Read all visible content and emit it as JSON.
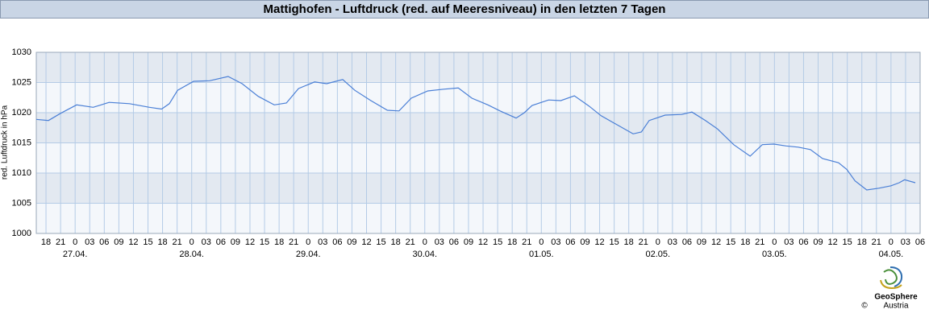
{
  "chart_data": {
    "type": "line",
    "title": "Mattighofen - Luftdruck (red. auf Meeresniveau) in den letzten 7 Tagen",
    "y_label": "red. Luftdruck in hPa",
    "copyright": "©",
    "logo_text": "GeoSphere",
    "logo_subtext": "Austria",
    "xlim": [
      -8,
      174
    ],
    "xticks": [
      {
        "value": -6,
        "label": "18"
      },
      {
        "value": -3,
        "label": "21"
      },
      0,
      {
        "value": 3,
        "label": "03"
      },
      {
        "value": 6,
        "label": "06"
      },
      {
        "value": 9,
        "label": "09"
      },
      12,
      15,
      18,
      21,
      {
        "value": 24,
        "label": "0"
      },
      {
        "value": 27,
        "label": "03"
      },
      {
        "value": 30,
        "label": "06"
      },
      {
        "value": 33,
        "label": "09"
      },
      {
        "value": 36,
        "label": "12"
      },
      {
        "value": 39,
        "label": "15"
      },
      {
        "value": 42,
        "label": "18"
      },
      {
        "value": 45,
        "label": "21"
      },
      {
        "value": 48,
        "label": "0"
      },
      {
        "value": 51,
        "label": "03"
      },
      {
        "value": 54,
        "label": "06"
      },
      {
        "value": 57,
        "label": "09"
      },
      {
        "value": 60,
        "label": "12"
      },
      {
        "value": 63,
        "label": "15"
      },
      {
        "value": 66,
        "label": "18"
      },
      {
        "value": 69,
        "label": "21"
      },
      {
        "value": 72,
        "label": "0"
      },
      {
        "value": 75,
        "label": "03"
      },
      {
        "value": 78,
        "label": "06"
      },
      {
        "value": 81,
        "label": "09"
      },
      {
        "value": 84,
        "label": "12"
      },
      {
        "value": 87,
        "label": "15"
      },
      {
        "value": 90,
        "label": "18"
      },
      {
        "value": 93,
        "label": "21"
      },
      {
        "value": 96,
        "label": "0"
      },
      {
        "value": 99,
        "label": "03"
      },
      {
        "value": 102,
        "label": "06"
      },
      {
        "value": 105,
        "label": "09"
      },
      {
        "value": 108,
        "label": "12"
      },
      {
        "value": 111,
        "label": "15"
      },
      {
        "value": 114,
        "label": "18"
      },
      {
        "value": 117,
        "label": "21"
      },
      {
        "value": 120,
        "label": "0"
      },
      {
        "value": 123,
        "label": "03"
      },
      {
        "value": 126,
        "label": "06"
      },
      {
        "value": 129,
        "label": "09"
      },
      {
        "value": 132,
        "label": "12"
      },
      {
        "value": 135,
        "label": "15"
      },
      {
        "value": 138,
        "label": "18"
      },
      {
        "value": 141,
        "label": "21"
      },
      {
        "value": 144,
        "label": "0"
      },
      {
        "value": 147,
        "label": "03"
      },
      {
        "value": 150,
        "label": "06"
      },
      {
        "value": 153,
        "label": "09"
      },
      {
        "value": 156,
        "label": "12"
      },
      {
        "value": 159,
        "label": "15"
      },
      {
        "value": 162,
        "label": "18"
      },
      {
        "value": 165,
        "label": "21"
      },
      {
        "value": 168,
        "label": "0"
      },
      {
        "value": 171,
        "label": "03"
      },
      {
        "value": 174,
        "label": "06"
      }
    ],
    "date_labels": [
      {
        "value": 0,
        "label": "27.04."
      },
      {
        "value": 24,
        "label": "28.04."
      },
      {
        "value": 48,
        "label": "29.04."
      },
      {
        "value": 72,
        "label": "30.04."
      },
      {
        "value": 96,
        "label": "01.05."
      },
      {
        "value": 120,
        "label": "02.05."
      },
      {
        "value": 144,
        "label": "03.05."
      },
      {
        "value": 168,
        "label": "04.05."
      }
    ],
    "ylim": [
      1000,
      1030
    ],
    "yticks": [
      1000,
      1005,
      1010,
      1015,
      1020,
      1025,
      1030
    ],
    "grid": true,
    "band_colors": [
      "#e3e9f1",
      "#f4f7fb"
    ],
    "x": [
      -8,
      -5.5,
      -3,
      0.3,
      3.7,
      7,
      11.2,
      15.3,
      17.8,
      19.4,
      21.1,
      24.4,
      27.7,
      31.5,
      34.4,
      37.7,
      41,
      43.5,
      46,
      49.3,
      51.8,
      55.1,
      57.6,
      60.9,
      64.3,
      66.7,
      69.2,
      72.6,
      75.9,
      78.9,
      81.7,
      85,
      87.5,
      90.8,
      92.5,
      94.1,
      97.5,
      100,
      102.8,
      105.8,
      108.3,
      111.6,
      114.9,
      116.6,
      118.2,
      121.5,
      124.9,
      127,
      129.8,
      132.3,
      135.6,
      139,
      141.5,
      143.9,
      146.4,
      148.9,
      151.4,
      153.9,
      157.2,
      158.9,
      160.6,
      163,
      165.5,
      168,
      169.7,
      170.8,
      173
    ],
    "series": [
      {
        "color": "#4a7fd6",
        "values": [
          1018.9,
          1018.7,
          1019.9,
          1021.3,
          1020.9,
          1021.7,
          1021.5,
          1020.9,
          1020.6,
          1021.5,
          1023.7,
          1025.2,
          1025.3,
          1026.0,
          1024.8,
          1022.7,
          1021.3,
          1021.6,
          1024.0,
          1025.1,
          1024.8,
          1025.5,
          1023.7,
          1022.0,
          1020.4,
          1020.3,
          1022.4,
          1023.6,
          1023.9,
          1024.1,
          1022.4,
          1021.3,
          1020.3,
          1019.1,
          1020.0,
          1021.2,
          1022.1,
          1022.0,
          1022.8,
          1021.1,
          1019.5,
          1018.0,
          1016.5,
          1016.8,
          1018.7,
          1019.6,
          1019.7,
          1020.1,
          1018.7,
          1017.3,
          1014.7,
          1012.8,
          1014.7,
          1014.8,
          1014.5,
          1014.3,
          1013.9,
          1012.4,
          1011.7,
          1010.6,
          1008.7,
          1007.2,
          1007.5,
          1007.9,
          1008.4,
          1008.9,
          1008.4
        ]
      }
    ]
  }
}
